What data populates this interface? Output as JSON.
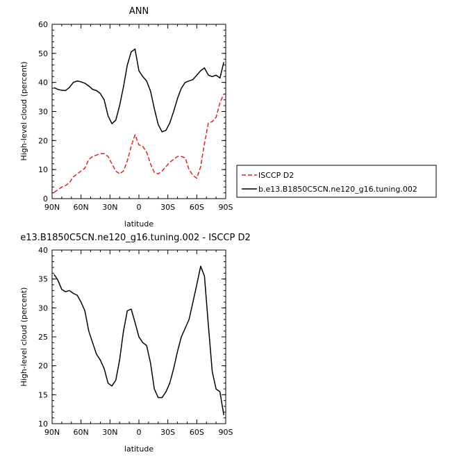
{
  "colors": {
    "model": "#000000",
    "obs": "#e8201c"
  },
  "chart_data": [
    {
      "type": "line",
      "title": "ANN",
      "xlabel": "latitude",
      "ylabel": "High-level cloud (percent)",
      "xlim": [
        90,
        -90
      ],
      "ylim": [
        0,
        60
      ],
      "xticks": [
        90,
        60,
        30,
        0,
        -30,
        -60,
        -90
      ],
      "xtick_labels": [
        "90N",
        "60N",
        "30N",
        "0",
        "30S",
        "60S",
        "90S"
      ],
      "yticks": [
        0,
        10,
        20,
        30,
        40,
        50,
        60
      ],
      "ytick_labels": [
        "0",
        "10",
        "20",
        "30",
        "40",
        "50",
        "60"
      ],
      "legend_position": "right-outside",
      "series": [
        {
          "name": "ISCCP D2",
          "style": "dashed",
          "x": [
            88,
            84,
            80,
            76,
            72,
            68,
            64,
            60,
            56,
            52,
            48,
            44,
            40,
            36,
            32,
            28,
            24,
            20,
            16,
            12,
            8,
            4,
            0,
            -4,
            -8,
            -12,
            -16,
            -20,
            -24,
            -28,
            -32,
            -36,
            -40,
            -44,
            -48,
            -52,
            -56,
            -60,
            -64,
            -68,
            -72,
            -76,
            -80,
            -84,
            -88
          ],
          "y": [
            2.2,
            3.0,
            4.0,
            4.5,
            5.5,
            7.5,
            8.5,
            9.5,
            10.5,
            13.5,
            14.5,
            15.0,
            15.5,
            15.5,
            14.5,
            12.0,
            9.5,
            8.5,
            9.5,
            13.0,
            18.0,
            22.0,
            18.5,
            18.0,
            16.0,
            12.0,
            9.0,
            8.5,
            9.5,
            11.0,
            12.5,
            13.5,
            14.5,
            14.5,
            14.0,
            10.0,
            8.0,
            7.0,
            11.0,
            19.0,
            26.0,
            26.5,
            28.0,
            33.0,
            36.0
          ]
        },
        {
          "name": "b.e13.B1850C5CN.ne120_g16.tuning.002",
          "style": "solid",
          "x": [
            88,
            84,
            80,
            76,
            72,
            68,
            64,
            60,
            56,
            52,
            48,
            44,
            40,
            36,
            32,
            28,
            24,
            20,
            16,
            12,
            8,
            4,
            0,
            -4,
            -8,
            -12,
            -16,
            -20,
            -24,
            -28,
            -32,
            -36,
            -40,
            -44,
            -48,
            -52,
            -56,
            -60,
            -64,
            -68,
            -72,
            -76,
            -80,
            -84,
            -88
          ],
          "y": [
            38.2,
            37.6,
            37.3,
            37.2,
            38.3,
            40.0,
            40.5,
            40.2,
            39.7,
            38.8,
            37.6,
            37.2,
            36.2,
            34.0,
            28.5,
            25.8,
            27.0,
            32.0,
            38.5,
            46.0,
            50.5,
            51.5,
            44.0,
            42.0,
            40.5,
            37.0,
            31.0,
            25.5,
            23.0,
            23.5,
            26.0,
            30.0,
            34.5,
            38.0,
            40.0,
            40.5,
            41.0,
            42.5,
            44.0,
            45.0,
            42.5,
            42.0,
            42.5,
            41.5,
            47.0
          ]
        }
      ]
    },
    {
      "type": "line",
      "title": "e13.B1850C5CN.ne120_g16.tuning.002 - ISCCP D2",
      "xlabel": "latitude",
      "ylabel": "High-level cloud (percent)",
      "xlim": [
        90,
        -90
      ],
      "ylim": [
        10,
        40
      ],
      "xticks": [
        90,
        60,
        30,
        0,
        -30,
        -60,
        -90
      ],
      "xtick_labels": [
        "90N",
        "60N",
        "30N",
        "0",
        "30S",
        "60S",
        "90S"
      ],
      "yticks": [
        10,
        15,
        20,
        25,
        30,
        35,
        40
      ],
      "ytick_labels": [
        "10",
        "15",
        "20",
        "25",
        "30",
        "35",
        "40"
      ],
      "series": [
        {
          "style": "solid",
          "x": [
            88,
            84,
            80,
            76,
            72,
            68,
            64,
            60,
            56,
            52,
            48,
            44,
            40,
            36,
            32,
            28,
            24,
            20,
            16,
            12,
            8,
            4,
            0,
            -4,
            -8,
            -12,
            -16,
            -20,
            -24,
            -28,
            -32,
            -36,
            -40,
            -44,
            -48,
            -52,
            -56,
            -60,
            -64,
            -68,
            -72,
            -76,
            -80,
            -84,
            -88
          ],
          "y": [
            35.8,
            34.8,
            33.2,
            32.8,
            33.0,
            32.5,
            32.2,
            31.0,
            29.5,
            26.0,
            24.0,
            22.0,
            21.0,
            19.5,
            17.0,
            16.5,
            17.5,
            21.0,
            26.0,
            29.5,
            29.8,
            27.5,
            25.0,
            24.0,
            23.5,
            20.5,
            16.0,
            14.5,
            14.5,
            15.5,
            17.0,
            19.5,
            22.5,
            25.0,
            26.5,
            28.0,
            31.0,
            34.0,
            37.2,
            35.5,
            27.0,
            19.0,
            16.0,
            15.5,
            11.5
          ]
        }
      ]
    }
  ]
}
